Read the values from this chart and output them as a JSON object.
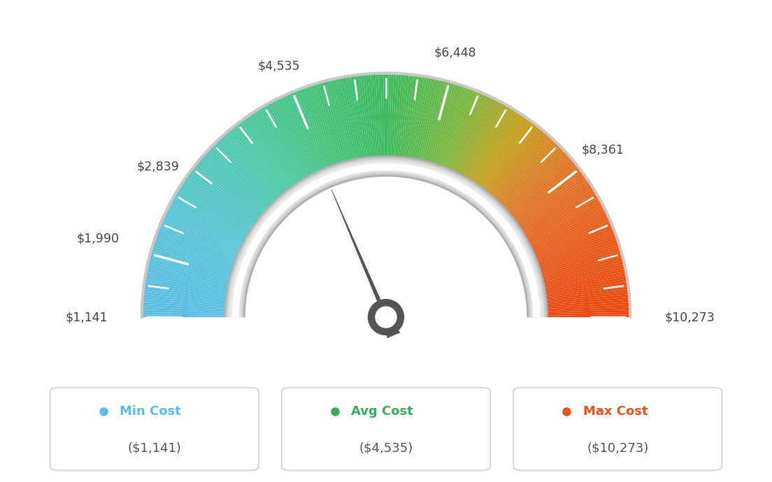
{
  "min_val": 1141,
  "max_val": 10273,
  "avg_val": 4535,
  "labels": [
    "$1,141",
    "$1,990",
    "$2,839",
    "$4,535",
    "$6,448",
    "$8,361",
    "$10,273"
  ],
  "label_vals": [
    1141,
    1990,
    2839,
    4535,
    6448,
    8361,
    10273
  ],
  "min_cost_label": "Min Cost",
  "avg_cost_label": "Avg Cost",
  "max_cost_label": "Max Cost",
  "min_cost_val": "($1,141)",
  "avg_cost_val": "($4,535)",
  "max_cost_val": "($10,273)",
  "min_color": "#5bbde4",
  "avg_color": "#3aaa5c",
  "max_color": "#e8521a",
  "background_color": "#ffffff",
  "needle_value": 4535,
  "color_stops": [
    [
      180,
      "#5bbde4"
    ],
    [
      155,
      "#5ac5d8"
    ],
    [
      130,
      "#4dc9aa"
    ],
    [
      110,
      "#45c47e"
    ],
    [
      90,
      "#3dbb5e"
    ],
    [
      70,
      "#7ab840"
    ],
    [
      55,
      "#c4a020"
    ],
    [
      40,
      "#e07828"
    ],
    [
      20,
      "#e85a1a"
    ],
    [
      0,
      "#e84a10"
    ]
  ]
}
